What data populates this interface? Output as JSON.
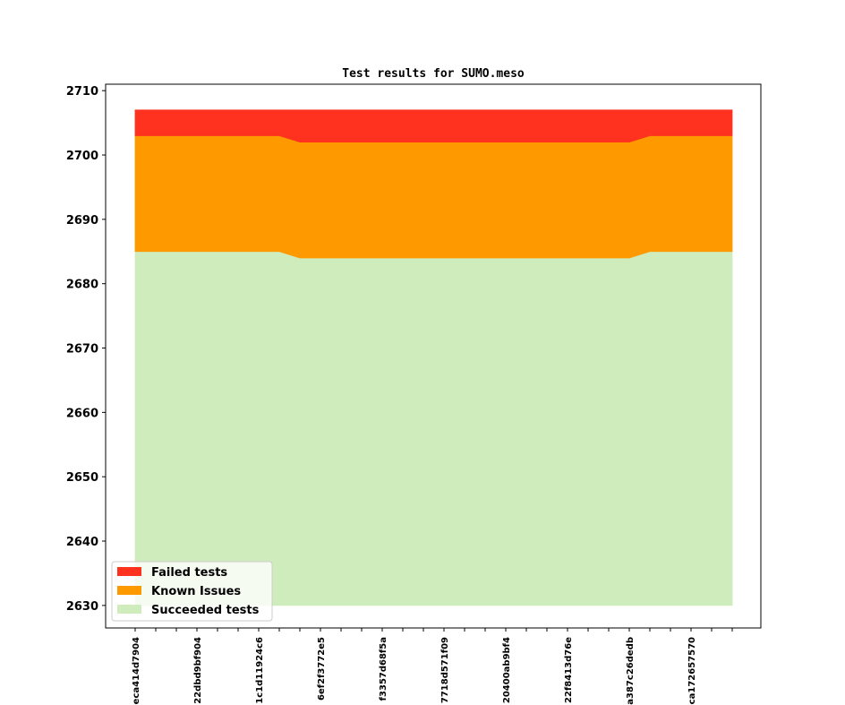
{
  "chart_data": {
    "type": "area",
    "title": "Test results for SUMO.meso",
    "xlabel": "",
    "ylabel": "",
    "ylim": [
      2626.5,
      2711
    ],
    "yticks": [
      2630,
      2640,
      2650,
      2660,
      2670,
      2680,
      2690,
      2700,
      2710
    ],
    "baseline": 2630,
    "x_labels": [
      "eca414d7904",
      "22dbd9bf904",
      "1c1d11924c6",
      "6ef2f3772e5",
      "f3357d68f5a",
      "7718d571f09",
      "20400ab9bf4",
      "22f8413d76e",
      "a387c26dedb",
      "ca172657570"
    ],
    "point_count": 30,
    "series": [
      {
        "name": "Succeeded tests",
        "color": "#cfecbc",
        "values": [
          2685,
          2685,
          2685,
          2685,
          2685,
          2685,
          2685,
          2685,
          2684,
          2684,
          2684,
          2684,
          2684,
          2684,
          2684,
          2684,
          2684,
          2684,
          2684,
          2684,
          2684,
          2684,
          2684,
          2684,
          2684,
          2685,
          2685,
          2685,
          2685,
          2685
        ]
      },
      {
        "name": "Known Issues",
        "color": "#fe9900",
        "values": [
          2703,
          2703,
          2703,
          2703,
          2703,
          2703,
          2703,
          2703,
          2702,
          2702,
          2702,
          2702,
          2702,
          2702,
          2702,
          2702,
          2702,
          2702,
          2702,
          2702,
          2702,
          2702,
          2702,
          2702,
          2702,
          2703,
          2703,
          2703,
          2703,
          2703
        ]
      },
      {
        "name": "Failed tests",
        "color": "#ff3220",
        "values": [
          2707,
          2707,
          2707,
          2707,
          2707,
          2707,
          2707,
          2707,
          2707,
          2707,
          2707,
          2707,
          2707,
          2707,
          2707,
          2707,
          2707,
          2707,
          2707,
          2707,
          2707,
          2707,
          2707,
          2707,
          2707,
          2707,
          2707,
          2707,
          2707,
          2707
        ]
      }
    ],
    "legend": {
      "placement": "lower-left",
      "entries": [
        "Failed tests",
        "Known Issues",
        "Succeeded tests"
      ]
    },
    "grid": false
  }
}
